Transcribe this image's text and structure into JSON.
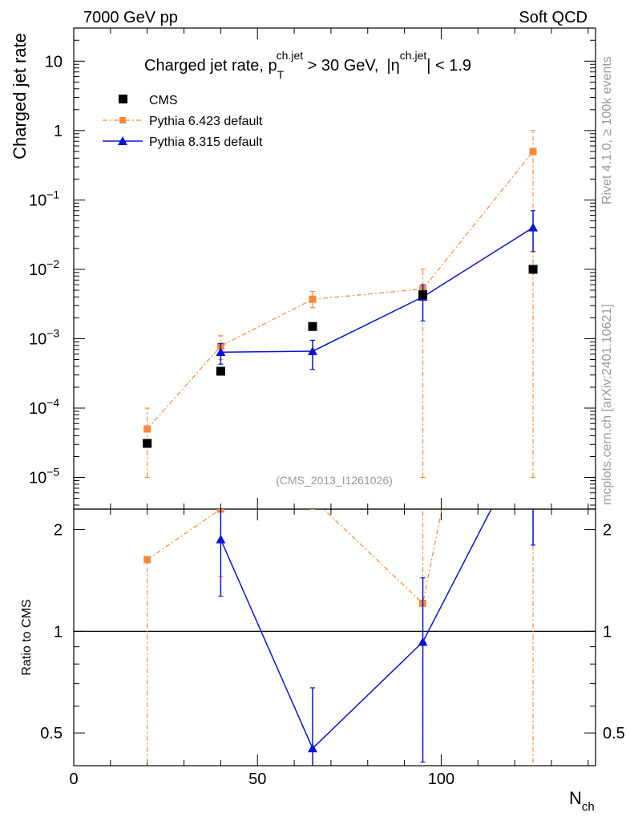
{
  "header": {
    "energy_label": "7000 GeV pp",
    "process_label": "Soft QCD"
  },
  "side_labels": {
    "rivet": "Rivet 4.1.0, ≥ 100k events",
    "source": "mcplots.cern.ch [arXiv:2401.10621]"
  },
  "chart_data": {
    "type": "scatter",
    "title_parts": {
      "prefix": "Charged jet rate, p",
      "pt_sub": "T",
      "pt_sup": "ch.jet",
      "cut": " > 30 GeV,",
      "eta_open": "|η",
      "eta_sup": "ch.jet",
      "eta_cut": "| < 1.9"
    },
    "analysis_id": "(CMS_2013_I1261026)",
    "ylabel": "Charged jet rate",
    "ratio_ylabel": "Ratio to CMS",
    "xlabel_main": "N",
    "xlabel_sub": "ch",
    "xlim": [
      0,
      142
    ],
    "ylim": [
      3.5e-06,
      30
    ],
    "yscale": "log",
    "ratio_ylim": [
      0.4,
      2.3
    ],
    "ratio_yscale": "log",
    "x_ticks": [
      "0",
      "50",
      "100"
    ],
    "y_tick_labels": [
      {
        "value": 1e-05,
        "base": "10",
        "exp": "−5"
      },
      {
        "value": 0.0001,
        "base": "10",
        "exp": "−4"
      },
      {
        "value": 0.001,
        "base": "10",
        "exp": "−3"
      },
      {
        "value": 0.01,
        "base": "10",
        "exp": "−2"
      },
      {
        "value": 0.1,
        "base": "10",
        "exp": "−1"
      },
      {
        "value": 1,
        "base": "1",
        "exp": ""
      },
      {
        "value": 10,
        "base": "10",
        "exp": ""
      }
    ],
    "ratio_tick_labels": [
      "0.5",
      "1",
      "2"
    ],
    "series": [
      {
        "name": "CMS",
        "color": "#000000",
        "marker": "square",
        "x": [
          20,
          40,
          65,
          95,
          125
        ],
        "y": [
          3.1e-05,
          0.00034,
          0.0015,
          0.0043,
          0.01
        ],
        "yerr_low": [
          0,
          0,
          0,
          0,
          0
        ],
        "yerr_high": [
          0,
          0,
          0,
          0,
          0
        ],
        "ratio": [
          1,
          1,
          1,
          1,
          1
        ]
      },
      {
        "name": "Pythia 6.423 default",
        "color": "#f58a3b",
        "marker": "square",
        "linestyle": "dashdot",
        "x": [
          20,
          40,
          65,
          95,
          125
        ],
        "y": [
          5e-05,
          0.00078,
          0.0037,
          0.0052,
          0.5
        ],
        "yerr_low": [
          1e-05,
          0.0005,
          0.0028,
          1e-05,
          1e-05
        ],
        "yerr_high": [
          0.0001,
          0.0011,
          0.0048,
          0.01,
          1.0
        ],
        "ratio": [
          1.63,
          2.3,
          2.47,
          1.21,
          50
        ],
        "ratio_err_low": [
          0.3,
          1.45,
          2.3,
          0.3,
          0.3
        ],
        "ratio_err_high": [
          1.63,
          2.35,
          2.6,
          2.4,
          60
        ]
      },
      {
        "name": "Pythia 8.315 default",
        "color": "#0a14d2",
        "marker": "triangle",
        "linestyle": "solid",
        "x": [
          40,
          65,
          95,
          125
        ],
        "y": [
          0.00064,
          0.00066,
          0.004,
          0.04
        ],
        "yerr_low": [
          0.00043,
          0.00036,
          0.0018,
          0.018
        ],
        "yerr_high": [
          0.00085,
          0.00095,
          0.006,
          0.07
        ],
        "ratio": [
          1.87,
          0.45,
          0.93,
          4.0
        ],
        "ratio_err_low": [
          1.27,
          0.3,
          0.41,
          1.8
        ],
        "ratio_err_high": [
          2.4,
          0.68,
          1.44,
          7.0
        ]
      }
    ]
  }
}
